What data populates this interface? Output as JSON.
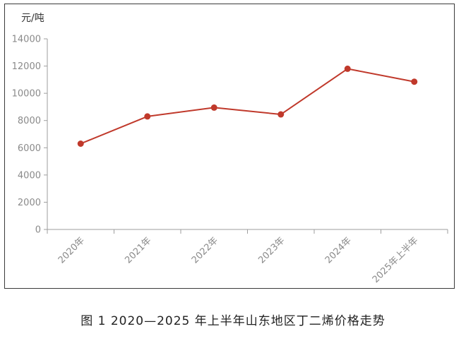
{
  "chart_data": {
    "type": "line",
    "title": "",
    "xlabel": "",
    "ylabel": "元/吨",
    "categories": [
      "2020年",
      "2021年",
      "2022年",
      "2023年",
      "2024年",
      "2025年上半年"
    ],
    "series": [
      {
        "values": [
          6300,
          8300,
          8950,
          8450,
          11800,
          10850
        ]
      }
    ],
    "yticks": [
      "0",
      "2000",
      "4000",
      "6000",
      "8000",
      "10000",
      "12000",
      "14000"
    ],
    "ylim": [
      0,
      14000
    ],
    "grid": false,
    "legend": "none",
    "colors": {
      "line": "#c0392b",
      "axis": "#9e9e9e",
      "text": "#8a8a8a"
    }
  },
  "caption": "图 1  2020—2025 年上半年山东地区丁二烯价格走势"
}
